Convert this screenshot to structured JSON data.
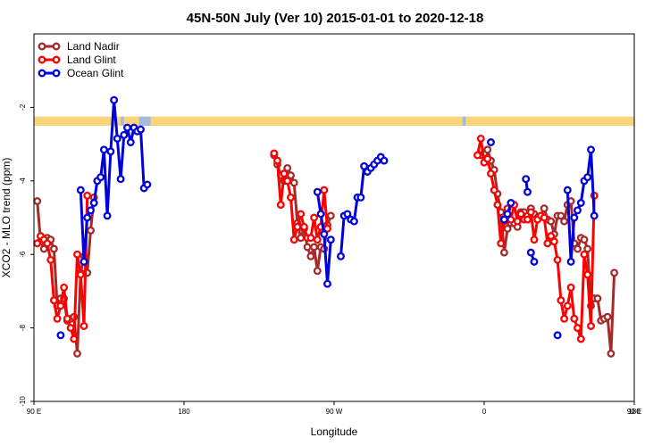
{
  "chart_data": {
    "type": "line",
    "title": "45N-50N July (Ver 10)   2015-01-01 to 2020-12-18",
    "xlabel": "Longitude",
    "ylabel": "XCO2 - MLO trend (ppm)",
    "xlim": [
      90,
      450
    ],
    "ylim": [
      -10,
      0
    ],
    "xticks": [
      {
        "value": 90,
        "label": "90 E"
      },
      {
        "value": 180,
        "label": "180"
      },
      {
        "value": 270,
        "label": "90 W"
      },
      {
        "value": 360,
        "label": "0"
      },
      {
        "value": 450,
        "label": "90 E"
      },
      {
        "value": 540,
        "label": "180"
      }
    ],
    "yticks": [
      {
        "value": -2,
        "label": "-2"
      },
      {
        "value": -4,
        "label": "-4"
      },
      {
        "value": -6,
        "label": "-6"
      },
      {
        "value": -8,
        "label": "-8"
      },
      {
        "value": -10,
        "label": "-10"
      }
    ],
    "legend_position": "top-left",
    "land_ocean_band": {
      "y_range": [
        -2.5,
        -2.25
      ],
      "land_color": "#F7D57A",
      "ocean_color": "#A9BBDB",
      "ocean_segments": [
        [
          142,
          144
        ],
        [
          153,
          160
        ],
        [
          347,
          349
        ],
        [
          450,
          502
        ]
      ]
    },
    "series": [
      {
        "name": "Land Nadir",
        "color": "#A52A2A",
        "segments": [
          [
            [
              92,
              -4.55
            ],
            [
              94,
              -5.65
            ],
            [
              96,
              -5.85
            ],
            [
              98,
              -5.55
            ],
            [
              100,
              -5.6
            ],
            [
              102,
              -5.85
            ],
            [
              104,
              -7.4
            ],
            [
              106,
              -7.2
            ],
            [
              108,
              -7.2
            ],
            [
              110,
              -7.8
            ],
            [
              112,
              -7.75
            ],
            [
              114,
              -7.7
            ],
            [
              116,
              -8.7
            ],
            [
              118,
              -6.5
            ],
            [
              120,
              -6.05
            ],
            [
              122,
              -6.5
            ],
            [
              124,
              -5.35
            ],
            [
              126,
              -4.45
            ]
          ],
          [
            [
              234,
              -3.3
            ],
            [
              236,
              -3.55
            ],
            [
              238,
              -3.85
            ],
            [
              240,
              -4.0
            ],
            [
              242,
              -3.65
            ],
            [
              244,
              -3.85
            ],
            [
              246,
              -4.05
            ],
            [
              248,
              -5.15
            ],
            [
              250,
              -5.55
            ],
            [
              252,
              -5.3
            ],
            [
              254,
              -5.8
            ],
            [
              256,
              -6.05
            ],
            [
              258,
              -5.8
            ],
            [
              260,
              -6.45
            ],
            [
              262,
              -5.8
            ],
            [
              264,
              -5.85
            ],
            [
              266,
              -5.2
            ],
            [
              268,
              -4.95
            ]
          ],
          [
            [
              358,
              -3.3
            ],
            [
              360,
              -3.25
            ],
            [
              362,
              -3.15
            ],
            [
              364,
              -3.45
            ],
            [
              366,
              -3.7
            ],
            [
              368,
              -4.35
            ],
            [
              370,
              -4.85
            ],
            [
              372,
              -5.95
            ],
            [
              374,
              -5.3
            ],
            [
              376,
              -5.15
            ],
            [
              378,
              -5.15
            ],
            [
              380,
              -5.25
            ],
            [
              382,
              -4.85
            ],
            [
              384,
              -4.85
            ],
            [
              386,
              -4.95
            ],
            [
              388,
              -4.75
            ],
            [
              390,
              -4.9
            ],
            [
              392,
              -5.0
            ],
            [
              394,
              -4.95
            ],
            [
              396,
              -4.75
            ],
            [
              398,
              -5.05
            ],
            [
              400,
              -5.1
            ],
            [
              402,
              -5.45
            ],
            [
              404,
              -4.95
            ],
            [
              406,
              -4.95
            ],
            [
              408,
              -5.1
            ],
            [
              410,
              -4.65
            ],
            [
              412,
              -4.55
            ],
            [
              414,
              -5.7
            ],
            [
              416,
              -5.85
            ],
            [
              418,
              -5.55
            ],
            [
              420,
              -5.6
            ],
            [
              422,
              -5.85
            ],
            [
              424,
              -7.4
            ],
            [
              426,
              -7.2
            ],
            [
              428,
              -7.2
            ],
            [
              430,
              -7.8
            ],
            [
              432,
              -7.75
            ],
            [
              434,
              -7.7
            ],
            [
              436,
              -8.7
            ],
            [
              438,
              -6.5
            ]
          ]
        ]
      },
      {
        "name": "Land Glint",
        "color": "#FF0000",
        "segments": [
          [
            [
              92,
              -5.7
            ],
            [
              94,
              -5.5
            ],
            [
              96,
              -5.6
            ],
            [
              98,
              -5.7
            ],
            [
              100,
              -6.15
            ],
            [
              102,
              -7.25
            ],
            [
              104,
              -7.75
            ],
            [
              106,
              -7.4
            ],
            [
              108,
              -6.9
            ],
            [
              110,
              -7.75
            ],
            [
              112,
              -8.0
            ],
            [
              114,
              -8.3
            ],
            [
              116,
              -6.0
            ],
            [
              118,
              -6.55
            ],
            [
              120,
              -7.95
            ],
            [
              122,
              -4.4
            ]
          ],
          [
            [
              234,
              -3.25
            ],
            [
              236,
              -3.45
            ],
            [
              238,
              -4.65
            ],
            [
              240,
              -3.8
            ],
            [
              242,
              -4.0
            ],
            [
              244,
              -4.45
            ],
            [
              246,
              -5.6
            ],
            [
              248,
              -5.25
            ],
            [
              250,
              -4.9
            ],
            [
              252,
              -5.25
            ],
            [
              254,
              -5.55
            ],
            [
              256,
              -5.55
            ],
            [
              258,
              -5.0
            ],
            [
              260,
              -5.6
            ],
            [
              262,
              -5.25
            ],
            [
              264,
              -4.25
            ],
            [
              266,
              -5.3
            ]
          ],
          [
            [
              356,
              -3.3
            ],
            [
              358,
              -2.85
            ],
            [
              360,
              -3.5
            ],
            [
              362,
              -3.4
            ],
            [
              364,
              -3.8
            ],
            [
              366,
              -4.25
            ],
            [
              368,
              -4.65
            ],
            [
              370,
              -5.7
            ],
            [
              372,
              -5.1
            ],
            [
              374,
              -4.75
            ],
            [
              376,
              -5.05
            ],
            [
              378,
              -4.65
            ],
            [
              380,
              -5.1
            ],
            [
              382,
              -4.9
            ],
            [
              384,
              -5.05
            ],
            [
              386,
              -5.05
            ],
            [
              388,
              -4.85
            ],
            [
              390,
              -5.6
            ],
            [
              392,
              -5.05
            ],
            [
              394,
              -4.95
            ],
            [
              396,
              -5.0
            ],
            [
              398,
              -5.7
            ],
            [
              400,
              -5.5
            ],
            [
              402,
              -5.65
            ],
            [
              404,
              -6.15
            ],
            [
              406,
              -7.25
            ],
            [
              408,
              -7.75
            ],
            [
              410,
              -7.4
            ],
            [
              412,
              -6.9
            ],
            [
              414,
              -7.75
            ],
            [
              416,
              -8.0
            ],
            [
              418,
              -8.3
            ],
            [
              420,
              -6.0
            ],
            [
              422,
              -6.55
            ],
            [
              424,
              -7.95
            ],
            [
              426,
              -4.4
            ]
          ]
        ]
      },
      {
        "name": "Ocean Glint",
        "color": "#0000DD",
        "segments": [
          [
            [
              106,
              -8.2
            ]
          ],
          [
            [
              118,
              -4.25
            ],
            [
              120,
              -6.2
            ],
            [
              122,
              -5.0
            ],
            [
              124,
              -4.8
            ],
            [
              126,
              -4.6
            ],
            [
              128,
              -4.0
            ],
            [
              130,
              -3.9
            ],
            [
              132,
              -3.15
            ],
            [
              134,
              -4.95
            ],
            [
              136,
              -3.2
            ],
            [
              138,
              -1.8
            ],
            [
              140,
              -2.85
            ],
            [
              142,
              -3.95
            ],
            [
              144,
              -2.75
            ],
            [
              146,
              -2.55
            ],
            [
              148,
              -2.95
            ],
            [
              150,
              -2.55
            ],
            [
              152,
              -2.65
            ],
            [
              154,
              -2.6
            ],
            [
              156,
              -4.2
            ],
            [
              158,
              -4.1
            ]
          ],
          [
            [
              260,
              -4.3
            ],
            [
              262,
              -4.9
            ],
            [
              264,
              -5.45
            ],
            [
              266,
              -6.8
            ],
            [
              268,
              -5.6
            ]
          ],
          [
            [
              274,
              -6.05
            ],
            [
              276,
              -4.95
            ],
            [
              278,
              -4.9
            ],
            [
              280,
              -5.05
            ],
            [
              282,
              -5.1
            ],
            [
              284,
              -4.45
            ],
            [
              286,
              -4.45
            ],
            [
              288,
              -3.6
            ],
            [
              290,
              -3.75
            ],
            [
              292,
              -3.65
            ],
            [
              294,
              -3.55
            ],
            [
              296,
              -3.45
            ],
            [
              298,
              -3.35
            ],
            [
              300,
              -3.45
            ]
          ],
          [
            [
              364,
              -2.95
            ]
          ],
          [
            [
              372,
              -5.05
            ],
            [
              374,
              -4.9
            ],
            [
              376,
              -4.6
            ]
          ],
          [
            [
              385,
              -3.95
            ],
            [
              386,
              -4.3
            ]
          ],
          [
            [
              388,
              -5.95
            ],
            [
              390,
              -6.2
            ]
          ],
          [
            [
              404,
              -8.2
            ]
          ],
          [
            [
              410,
              -4.25
            ],
            [
              412,
              -6.2
            ],
            [
              414,
              -5.0
            ],
            [
              416,
              -4.8
            ],
            [
              418,
              -4.6
            ],
            [
              420,
              -4.0
            ],
            [
              422,
              -3.9
            ],
            [
              424,
              -3.15
            ],
            [
              426,
              -4.95
            ]
          ]
        ]
      }
    ]
  }
}
